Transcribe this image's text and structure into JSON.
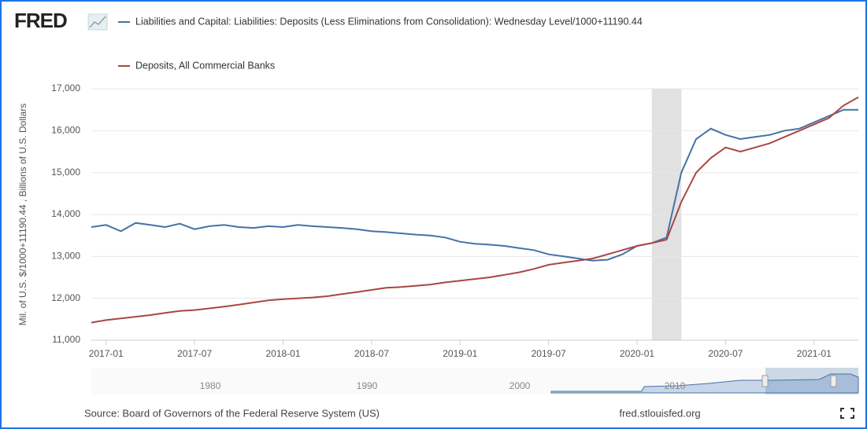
{
  "chart_data": {
    "type": "line",
    "logo": "FRED",
    "y_label": "Mil. of U.S. $/1000+11190.44 , Billions of U.S. Dollars",
    "source": "Source: Board of Governors of the Federal Reserve System (US)",
    "site": "fred.stlouisfed.org",
    "navigator_labels": [
      "1980",
      "1990",
      "2000",
      "2010"
    ],
    "shaded_range": [
      "2020-02",
      "2020-04"
    ],
    "grid": true,
    "legend": "top",
    "xlim": [
      "2016-12",
      "2021-04"
    ],
    "xticks": [
      "2017-01",
      "2017-07",
      "2018-01",
      "2018-07",
      "2019-01",
      "2019-07",
      "2020-01",
      "2020-07",
      "2021-01"
    ],
    "ylim": [
      11000,
      17000
    ],
    "yticks": [
      {
        "value": 11000,
        "label": "11,000"
      },
      {
        "value": 12000,
        "label": "12,000"
      },
      {
        "value": 13000,
        "label": "13,000"
      },
      {
        "value": 14000,
        "label": "14,000"
      },
      {
        "value": 15000,
        "label": "15,000"
      },
      {
        "value": 16000,
        "label": "16,000"
      },
      {
        "value": 17000,
        "label": "17,000"
      }
    ],
    "x": [
      "2016-12",
      "2017-01",
      "2017-02",
      "2017-03",
      "2017-04",
      "2017-05",
      "2017-06",
      "2017-07",
      "2017-08",
      "2017-09",
      "2017-10",
      "2017-11",
      "2017-12",
      "2018-01",
      "2018-02",
      "2018-03",
      "2018-04",
      "2018-05",
      "2018-06",
      "2018-07",
      "2018-08",
      "2018-09",
      "2018-10",
      "2018-11",
      "2018-12",
      "2019-01",
      "2019-02",
      "2019-03",
      "2019-04",
      "2019-05",
      "2019-06",
      "2019-07",
      "2019-08",
      "2019-09",
      "2019-10",
      "2019-11",
      "2019-12",
      "2020-01",
      "2020-02",
      "2020-03",
      "2020-04",
      "2020-05",
      "2020-06",
      "2020-07",
      "2020-08",
      "2020-09",
      "2020-10",
      "2020-11",
      "2020-12",
      "2021-01",
      "2021-02",
      "2021-03",
      "2021-04"
    ],
    "series": [
      {
        "name": "Liabilities and Capital: Liabilities: Deposits (Less Eliminations from Consolidation): Wednesday Level/1000+11190.44",
        "color": "#4572a7",
        "values": [
          13700,
          13750,
          13600,
          13800,
          13750,
          13700,
          13780,
          13650,
          13720,
          13750,
          13700,
          13680,
          13720,
          13700,
          13750,
          13720,
          13700,
          13680,
          13650,
          13600,
          13580,
          13550,
          13520,
          13500,
          13450,
          13350,
          13300,
          13280,
          13250,
          13200,
          13150,
          13050,
          13000,
          12950,
          12900,
          12920,
          13050,
          13250,
          13320,
          13450,
          15000,
          15800,
          16050,
          15900,
          15800,
          15850,
          15900,
          16000,
          16050,
          16200,
          16350,
          16500,
          16500
        ]
      },
      {
        "name": "Deposits, All Commercial Banks",
        "color": "#aa4643",
        "values": [
          11420,
          11480,
          11520,
          11560,
          11600,
          11650,
          11700,
          11720,
          11760,
          11800,
          11850,
          11900,
          11950,
          11980,
          12000,
          12020,
          12050,
          12100,
          12150,
          12200,
          12250,
          12270,
          12300,
          12330,
          12380,
          12420,
          12460,
          12500,
          12560,
          12620,
          12700,
          12800,
          12850,
          12900,
          12950,
          13050,
          13150,
          13250,
          13320,
          13400,
          14300,
          15000,
          15350,
          15600,
          15500,
          15600,
          15700,
          15850,
          16000,
          16150,
          16300,
          16600,
          16800
        ]
      }
    ]
  }
}
